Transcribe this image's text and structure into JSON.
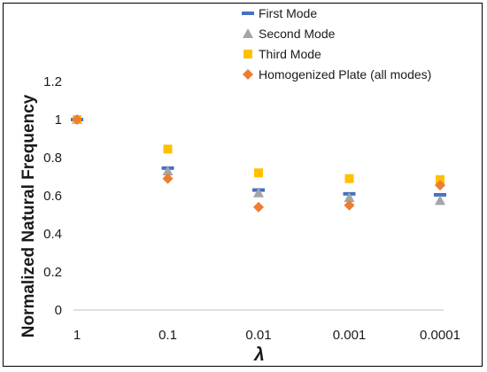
{
  "chart_data": {
    "type": "scatter",
    "title": "",
    "xlabel": "λ",
    "ylabel": "Normalized Natural Frequency",
    "categories": [
      "1",
      "0.1",
      "0.01",
      "0.001",
      "0.0001"
    ],
    "ylim": [
      0,
      1.2
    ],
    "yticks": [
      "0",
      "0.2",
      "0.4",
      "0.6",
      "0.8",
      "1",
      "1.2"
    ],
    "grid": false,
    "legend_position": "top-right",
    "series": [
      {
        "name": "First Mode",
        "marker": "dash",
        "color": "#4472C4",
        "values": [
          1.0,
          0.745,
          0.63,
          0.61,
          0.605
        ]
      },
      {
        "name": "Second Mode",
        "marker": "triangle",
        "color": "#A5A5A5",
        "values": [
          1.0,
          0.73,
          0.615,
          0.59,
          0.575
        ]
      },
      {
        "name": "Third Mode",
        "marker": "square",
        "color": "#FFC000",
        "values": [
          1.0,
          0.845,
          0.72,
          0.69,
          0.685
        ]
      },
      {
        "name": "Homogenized Plate (all modes)",
        "marker": "diamond",
        "color": "#ED7D31",
        "values": [
          1.0,
          0.69,
          0.54,
          0.55,
          0.655
        ]
      }
    ]
  }
}
